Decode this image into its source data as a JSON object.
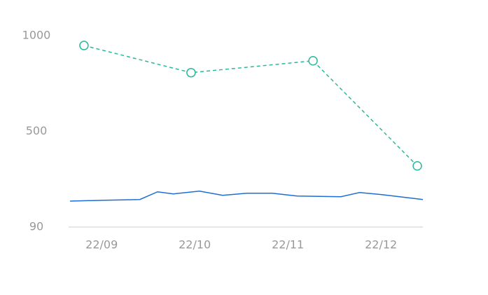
{
  "chart_data": {
    "type": "line",
    "scale": "piecewise",
    "ylim": [
      90,
      1000
    ],
    "yticks": [
      90,
      500,
      1000
    ],
    "xlim": [
      8.66,
      12.45
    ],
    "xticks": [
      {
        "value": 9,
        "label": "22/09"
      },
      {
        "value": 10,
        "label": "22/10"
      },
      {
        "value": 11,
        "label": "22/11"
      },
      {
        "value": 12,
        "label": "22/12"
      }
    ],
    "series": [
      {
        "color": "#1c6ed6",
        "dashed": false,
        "markers": false,
        "x": [
          8.66,
          9.04,
          9.41,
          9.6,
          9.77,
          10.05,
          10.3,
          10.56,
          10.83,
          11.1,
          11.57,
          11.77,
          12.01,
          12.45
        ],
        "values": [
          201,
          205,
          208,
          241,
          232,
          244,
          226,
          235,
          235,
          223,
          220,
          238,
          229,
          208
        ]
      },
      {
        "color": "#2bb89c",
        "dashed": true,
        "markers": true,
        "x": [
          8.81,
          9.96,
          11.27,
          12.39
        ],
        "values": [
          949,
          807,
          869,
          352
        ]
      }
    ]
  }
}
